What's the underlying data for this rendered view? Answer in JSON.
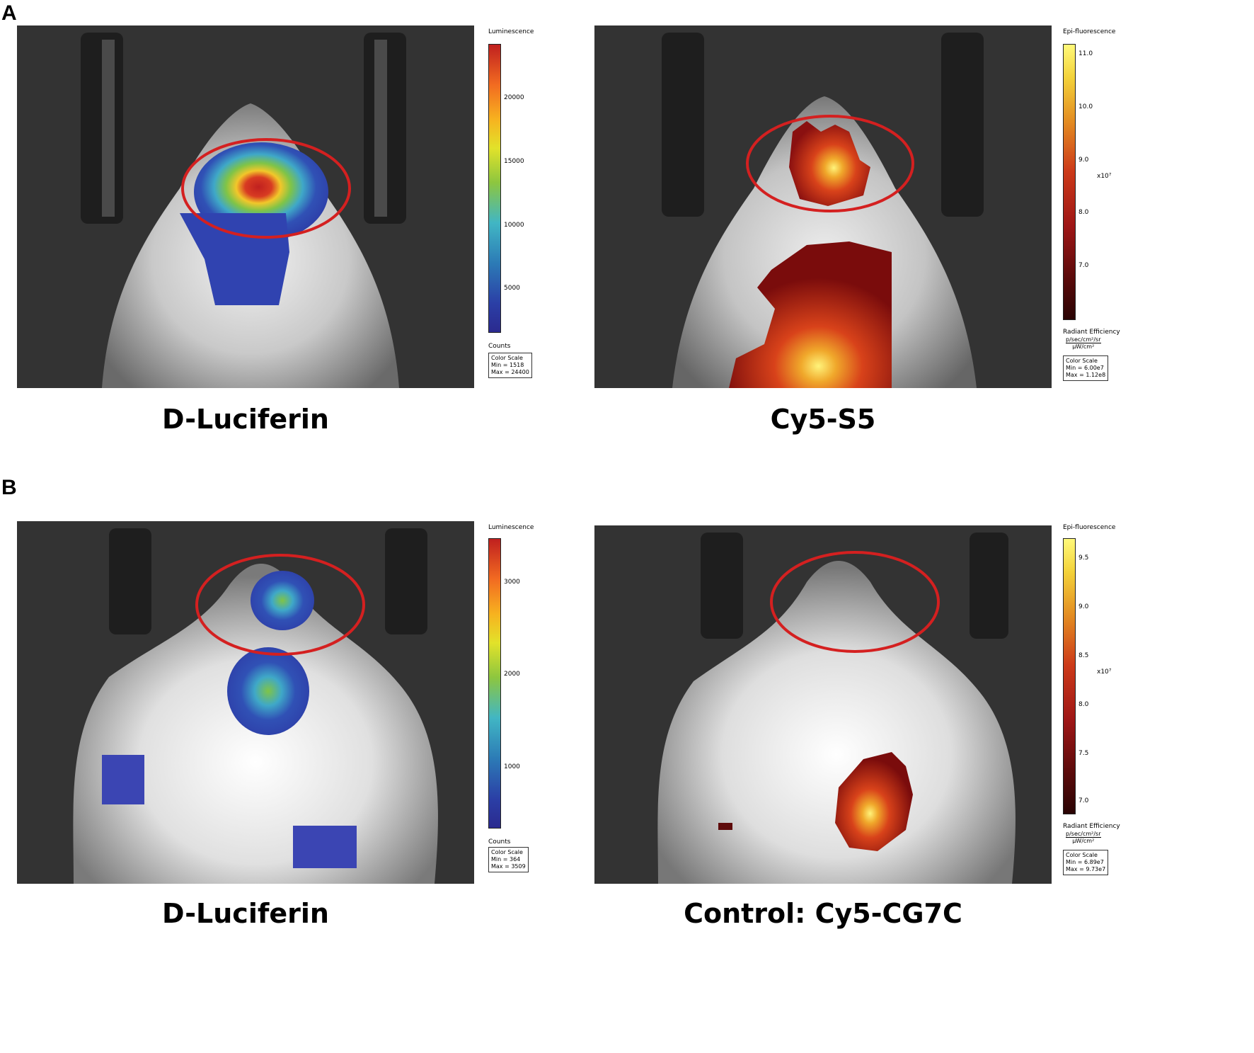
{
  "panels": [
    {
      "letter": "A",
      "left": {
        "caption": "D-Luciferin",
        "scale": {
          "title": "Luminescence",
          "ticks": [
            "20000",
            "15000",
            "10000",
            "5000"
          ],
          "units": "Counts",
          "box": {
            "line1": "Color Scale",
            "line2": "Min = 1518",
            "line3": "Max = 24400"
          }
        }
      },
      "right": {
        "caption": "Cy5-S5",
        "scale": {
          "title": "Epi-fluorescence",
          "ticks": [
            "11.0",
            "10.0",
            "9.0",
            "8.0",
            "7.0"
          ],
          "exponent": "x10⁷",
          "units": "Radiant Efficiency",
          "units_num": "p/sec/cm²/sr",
          "units_den": "μW/cm²",
          "box": {
            "line1": "Color Scale",
            "line2": "Min = 6.00e7",
            "line3": "Max = 1.12e8"
          }
        }
      }
    },
    {
      "letter": "B",
      "left": {
        "caption": "D-Luciferin",
        "scale": {
          "title": "Luminescence",
          "ticks": [
            "3000",
            "2000",
            "1000"
          ],
          "units": "Counts",
          "box": {
            "line1": "Color Scale",
            "line2": "Min = 364",
            "line3": "Max = 3509"
          }
        }
      },
      "right": {
        "caption": "Control: Cy5-CG7C",
        "scale": {
          "title": "Epi-fluorescence",
          "ticks": [
            "9.5",
            "9.0",
            "8.5",
            "8.0",
            "7.5",
            "7.0"
          ],
          "exponent": "x10⁷",
          "units": "Radiant Efficiency",
          "units_num": "p/sec/cm²/sr",
          "units_den": "μW/cm²",
          "box": {
            "line1": "Color Scale",
            "line2": "Min = 6.89e7",
            "line3": "Max = 9.73e7"
          }
        }
      }
    }
  ],
  "colors": {
    "roi_ellipse": "#d42020",
    "background_dark": "#333333"
  }
}
